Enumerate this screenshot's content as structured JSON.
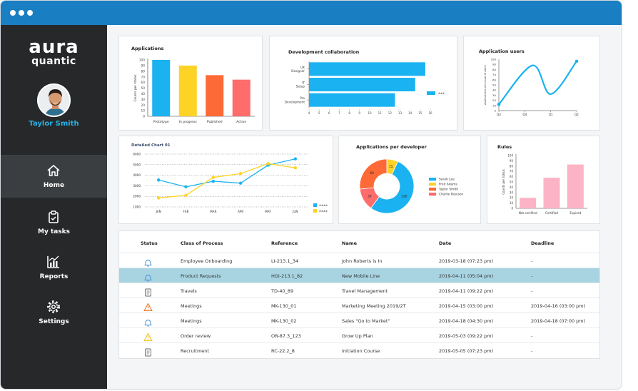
{
  "sidebar": {
    "logo_line1": "aura",
    "logo_line2": "quantic",
    "user_name": "Taylor Smith",
    "nav": [
      {
        "label": "Home",
        "icon": "home-icon",
        "active": true
      },
      {
        "label": "My tasks",
        "icon": "clipboard-icon",
        "active": false
      },
      {
        "label": "Reports",
        "icon": "bar-chart-icon",
        "active": false
      },
      {
        "label": "Settings",
        "icon": "gear-icon",
        "active": false
      }
    ]
  },
  "colors": {
    "titlebar": "#1a7ec2",
    "sidebar": "#262829",
    "accent": "#27b3e8",
    "series_blue": "#1ab2f0",
    "series_yellow": "#fdd326",
    "series_orange": "#fd6a37",
    "series_red": "#fe6c6c",
    "series_pink": "#fdb3c6",
    "row_selected": "#a8d4e2",
    "warn_orange": "#f0762c",
    "warn_yellow": "#f2c318"
  },
  "chart_data": [
    {
      "id": "applications",
      "type": "bar",
      "title": "Applications",
      "ylabel": "Counts per status",
      "ylim": [
        0,
        100
      ],
      "yticks": [
        0,
        10,
        20,
        30,
        40,
        50,
        60,
        70,
        80,
        90,
        100
      ],
      "categories": [
        "Prototype",
        "In progress",
        "Published",
        "Active"
      ],
      "values": [
        100,
        90,
        73,
        65
      ],
      "colors": [
        "#1ab2f0",
        "#fdd326",
        "#fd6a37",
        "#fe6c6c"
      ]
    },
    {
      "id": "dev_collab",
      "type": "bar",
      "orientation": "horizontal",
      "title": "Development collaboration",
      "categories": [
        "UX Designer",
        "IT Setup",
        "Pro Development"
      ],
      "values": [
        15.5,
        14.5,
        12.5
      ],
      "xlim": [
        4,
        16
      ],
      "xticks": [
        4,
        5,
        6,
        7,
        8,
        9,
        10,
        11,
        12,
        13,
        14,
        15,
        16
      ],
      "legend": "###",
      "color": "#1ab2f0"
    },
    {
      "id": "app_users",
      "type": "line",
      "title": "Application users",
      "ylabel": "Applications per count of users",
      "ylim": [
        0,
        100
      ],
      "yticks": [
        0,
        10,
        20,
        30,
        40,
        50,
        60,
        70,
        80,
        90,
        100
      ],
      "categories": [
        "Q3",
        "Q4",
        "Q1",
        "Q2"
      ],
      "points": [
        [
          0,
          12
        ],
        [
          1.3,
          88
        ],
        [
          2.0,
          32
        ],
        [
          3.0,
          96
        ]
      ],
      "color": "#1ab2f0"
    },
    {
      "id": "detailed",
      "type": "line",
      "title": "Detailed Chart 01",
      "ylim": [
        1000,
        6000
      ],
      "yticks": [
        1000,
        2000,
        3000,
        4000,
        5000,
        6000
      ],
      "categories": [
        "JAN",
        "FEB",
        "MAR",
        "APR",
        "MAY",
        "JUN"
      ],
      "series": [
        {
          "name": "####",
          "values": [
            3550,
            2900,
            3430,
            3250,
            4950,
            5550
          ],
          "color": "#1ab2f0"
        },
        {
          "name": "####",
          "values": [
            1850,
            2100,
            3800,
            4150,
            5100,
            4700
          ],
          "color": "#fdd326"
        }
      ]
    },
    {
      "id": "apps_per_dev",
      "type": "pie",
      "donut": true,
      "title": "Applications per developer",
      "slices": [
        {
          "name": "Sarah Lee",
          "value": 120,
          "color": "#1ab2f0"
        },
        {
          "name": "Fred Adams",
          "value": 15,
          "color": "#fdd326"
        },
        {
          "name": "Taylor Smith",
          "value": 60,
          "color": "#fd6a37"
        },
        {
          "name": "Charlie Pearson",
          "value": 30,
          "color": "#fe6c6c"
        }
      ],
      "slice_order": [
        1,
        0,
        3,
        2
      ]
    },
    {
      "id": "rules",
      "type": "bar",
      "title": "Rules",
      "ylabel": "Counts per status",
      "ylim": [
        0,
        100
      ],
      "yticks": [
        0,
        10,
        20,
        30,
        40,
        50,
        60,
        70,
        80,
        90,
        100
      ],
      "categories": [
        "Not certified",
        "Certified",
        "Expired"
      ],
      "values": [
        20,
        58,
        83
      ],
      "color": "#fdb3c6"
    }
  ],
  "table": {
    "headers": {
      "status": "Status",
      "cls": "Class of Process",
      "ref": "Reference",
      "name": "Name",
      "date": "Date",
      "deadline": "Deadline"
    },
    "rows": [
      {
        "icon": "bell-icon",
        "cls": "Employee Onboarding",
        "ref": "LI-213.1_34",
        "name": "John Roberts is In",
        "date": "2019-03-18 (07:23 pm)",
        "deadline": "-",
        "selected": false
      },
      {
        "icon": "bell-icon",
        "cls": "Product Requests",
        "ref": "HGI-213.1_82",
        "name": "New Mobile Line",
        "date": "2019-04-11 (05:04 pm)",
        "deadline": "-",
        "selected": true
      },
      {
        "icon": "document-icon",
        "cls": "Travels",
        "ref": "TD-40_89",
        "name": "Travel Management",
        "date": "2019-04-11 (09:22 pm)",
        "deadline": "-",
        "selected": false
      },
      {
        "icon": "warning-orange-icon",
        "cls": "Meetings",
        "ref": "MK-130_01",
        "name": "Marketing Meeting 2019/2T",
        "date": "2019-04-15 (03:00 pm)",
        "deadline": "2019-04-16 (03:00 pm)",
        "selected": false
      },
      {
        "icon": "bell-icon",
        "cls": "Meetings",
        "ref": "MK-130_02",
        "name": "Sales \"Go to Market\"",
        "date": "2019-04-18 (04:30 pm)",
        "deadline": "2019-04-18 (07:00 pm)",
        "selected": false
      },
      {
        "icon": "warning-yellow-icon",
        "cls": "Order review",
        "ref": "OR-87.3_123",
        "name": "Grow Up Plan",
        "date": "2019-05-03 (09:22 pm)",
        "deadline": "-",
        "selected": false
      },
      {
        "icon": "document-icon",
        "cls": "Recruitment",
        "ref": "RC-22.2_8",
        "name": "Initiation Course",
        "date": "2019-05-05 (07:23 pm)",
        "deadline": "-",
        "selected": false
      }
    ]
  }
}
